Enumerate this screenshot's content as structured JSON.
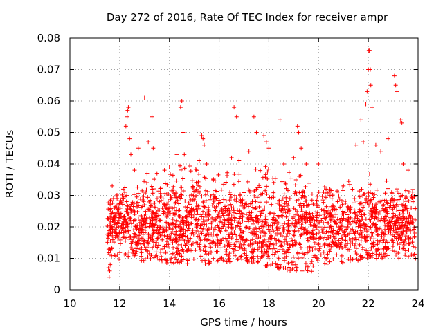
{
  "chart_data": {
    "type": "scatter",
    "title": "Day 272 of 2016, Rate Of TEC Index for receiver ampr",
    "xlabel": "GPS time / hours",
    "ylabel": "ROTI / TECUs",
    "xlim": [
      10,
      24
    ],
    "ylim": [
      0,
      0.08
    ],
    "x_ticks": [
      10,
      12,
      14,
      16,
      18,
      20,
      22,
      24
    ],
    "y_ticks": [
      0,
      0.01,
      0.02,
      0.03,
      0.04,
      0.05,
      0.06,
      0.07,
      0.08
    ],
    "x_tick_labels": [
      "10",
      "12",
      "14",
      "16",
      "18",
      "20",
      "22",
      "24"
    ],
    "y_tick_labels": [
      "0",
      "0.01",
      "0.02",
      "0.03",
      "0.04",
      "0.05",
      "0.06",
      "0.07",
      "0.08"
    ],
    "grid": true,
    "marker": "+",
    "color": "#ff0000",
    "data_time_range_hours": [
      11.5,
      23.9
    ],
    "series": [
      {
        "name": "ROTI",
        "points": [
          [
            11.55,
            0.007
          ],
          [
            11.58,
            0.004
          ],
          [
            11.6,
            0.006
          ],
          [
            11.62,
            0.008
          ],
          [
            11.7,
            0.033
          ],
          [
            11.75,
            0.029
          ],
          [
            11.8,
            0.026
          ],
          [
            12.2,
            0.031
          ],
          [
            12.25,
            0.052
          ],
          [
            12.3,
            0.055
          ],
          [
            12.32,
            0.057
          ],
          [
            12.35,
            0.058
          ],
          [
            12.4,
            0.048
          ],
          [
            12.45,
            0.043
          ],
          [
            12.6,
            0.038
          ],
          [
            12.75,
            0.045
          ],
          [
            13.0,
            0.061
          ],
          [
            13.1,
            0.037
          ],
          [
            13.15,
            0.047
          ],
          [
            13.3,
            0.055
          ],
          [
            13.35,
            0.045
          ],
          [
            13.5,
            0.037
          ],
          [
            13.6,
            0.028
          ],
          [
            13.8,
            0.038
          ],
          [
            14.0,
            0.039
          ],
          [
            14.3,
            0.043
          ],
          [
            14.45,
            0.058
          ],
          [
            14.5,
            0.06
          ],
          [
            14.55,
            0.05
          ],
          [
            14.6,
            0.043
          ],
          [
            15.2,
            0.041
          ],
          [
            15.3,
            0.049
          ],
          [
            15.35,
            0.048
          ],
          [
            15.4,
            0.046
          ],
          [
            15.5,
            0.04
          ],
          [
            16.5,
            0.042
          ],
          [
            16.6,
            0.058
          ],
          [
            16.7,
            0.055
          ],
          [
            16.8,
            0.041
          ],
          [
            17.2,
            0.044
          ],
          [
            17.4,
            0.055
          ],
          [
            17.5,
            0.05
          ],
          [
            17.8,
            0.049
          ],
          [
            17.9,
            0.047
          ],
          [
            18.0,
            0.045
          ],
          [
            18.45,
            0.054
          ],
          [
            18.6,
            0.04
          ],
          [
            19.0,
            0.042
          ],
          [
            19.15,
            0.052
          ],
          [
            19.2,
            0.05
          ],
          [
            19.3,
            0.045
          ],
          [
            19.5,
            0.04
          ],
          [
            20.0,
            0.04
          ],
          [
            20.2,
            0.031
          ],
          [
            20.3,
            0.032
          ],
          [
            21.0,
            0.033
          ],
          [
            21.5,
            0.046
          ],
          [
            21.7,
            0.054
          ],
          [
            21.8,
            0.047
          ],
          [
            21.9,
            0.059
          ],
          [
            21.95,
            0.063
          ],
          [
            22.0,
            0.07
          ],
          [
            22.02,
            0.076
          ],
          [
            22.05,
            0.076
          ],
          [
            22.08,
            0.07
          ],
          [
            22.1,
            0.065
          ],
          [
            22.15,
            0.058
          ],
          [
            22.3,
            0.046
          ],
          [
            22.5,
            0.044
          ],
          [
            22.8,
            0.048
          ],
          [
            23.05,
            0.068
          ],
          [
            23.1,
            0.065
          ],
          [
            23.15,
            0.063
          ],
          [
            23.3,
            0.054
          ],
          [
            23.35,
            0.053
          ],
          [
            23.4,
            0.04
          ],
          [
            23.6,
            0.038
          ],
          [
            23.8,
            0.028
          ],
          [
            23.85,
            0.017
          ],
          [
            23.9,
            0.01
          ]
        ]
      }
    ],
    "bulk_band": {
      "description": "dense cloud of points between the lower and upper envelope",
      "x_range": [
        11.5,
        23.9
      ],
      "lower_envelope": [
        [
          11.5,
          0.01
        ],
        [
          13.0,
          0.009
        ],
        [
          15.0,
          0.008
        ],
        [
          17.0,
          0.009
        ],
        [
          18.2,
          0.007
        ],
        [
          19.2,
          0.005
        ],
        [
          20.5,
          0.007
        ],
        [
          22.0,
          0.01
        ],
        [
          23.9,
          0.01
        ]
      ],
      "upper_envelope": [
        [
          11.5,
          0.028
        ],
        [
          12.5,
          0.035
        ],
        [
          13.5,
          0.036
        ],
        [
          14.5,
          0.04
        ],
        [
          15.5,
          0.038
        ],
        [
          16.5,
          0.038
        ],
        [
          17.5,
          0.04
        ],
        [
          18.5,
          0.038
        ],
        [
          19.5,
          0.036
        ],
        [
          20.5,
          0.032
        ],
        [
          21.5,
          0.036
        ],
        [
          22.5,
          0.038
        ],
        [
          23.9,
          0.032
        ]
      ],
      "median": [
        [
          11.5,
          0.02
        ],
        [
          13.0,
          0.02
        ],
        [
          15.0,
          0.022
        ],
        [
          17.0,
          0.021
        ],
        [
          19.0,
          0.019
        ],
        [
          21.0,
          0.02
        ],
        [
          23.9,
          0.021
        ]
      ]
    }
  }
}
